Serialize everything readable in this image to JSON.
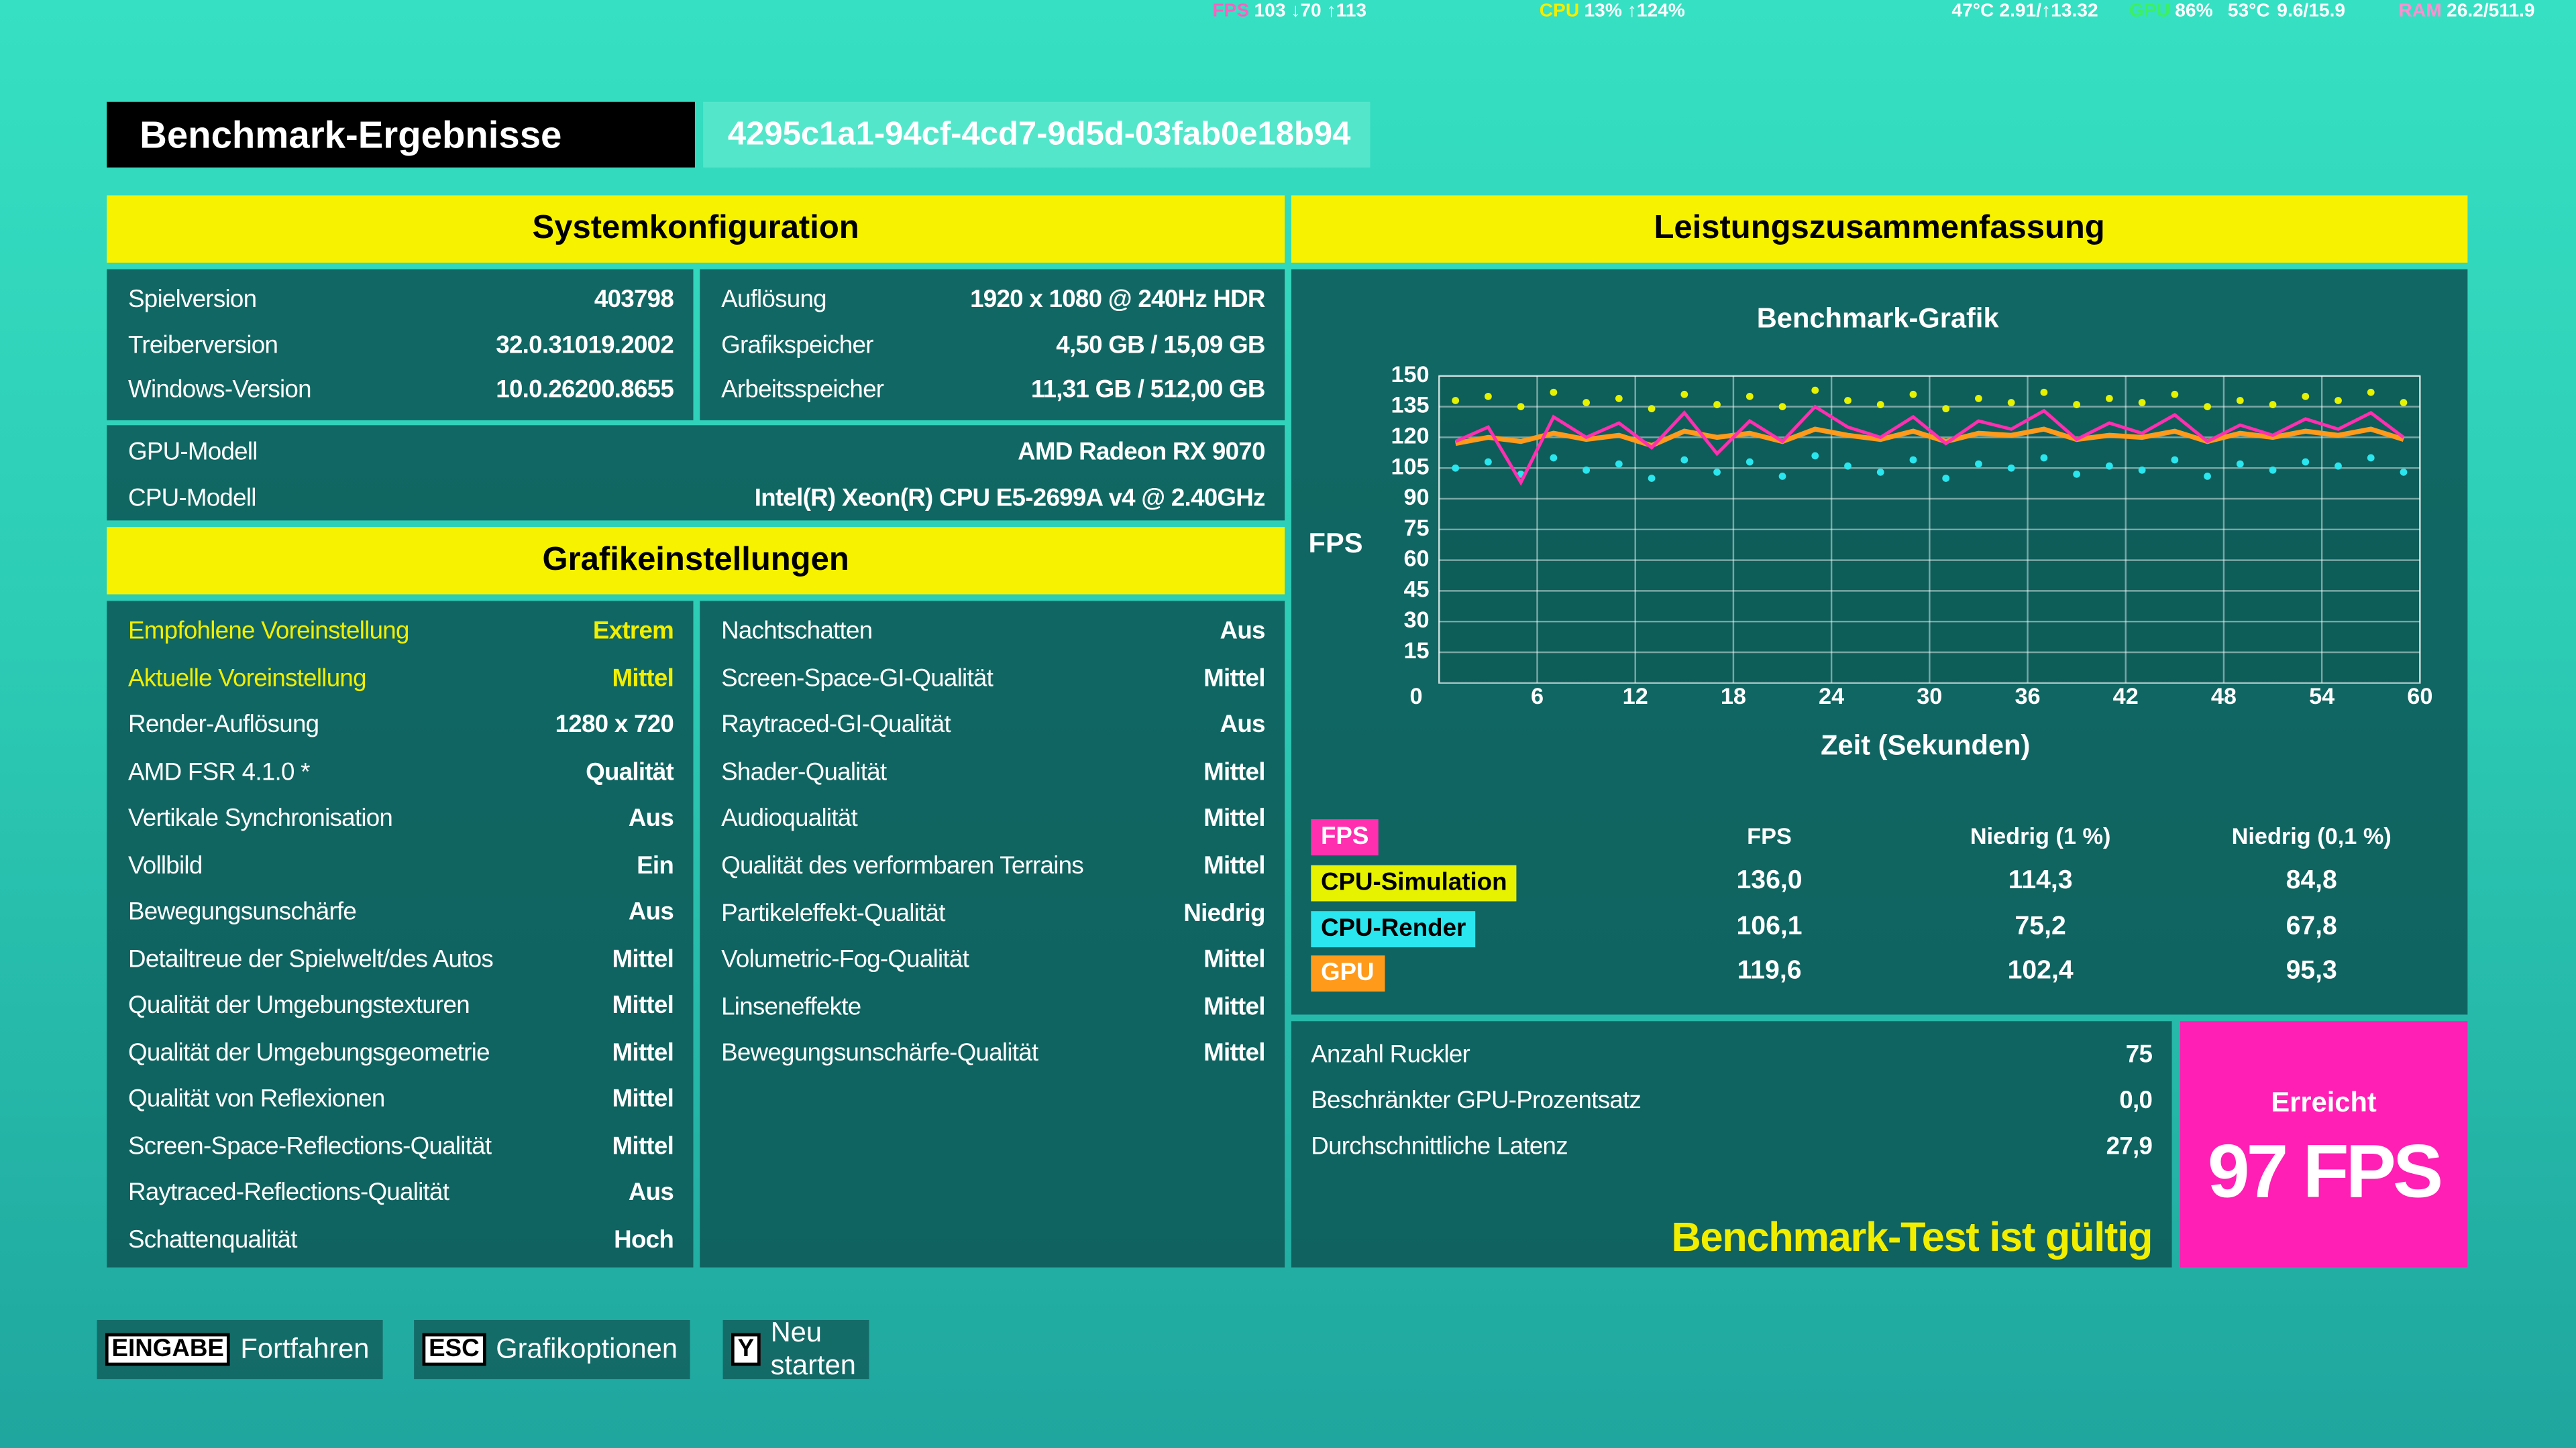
{
  "overlay": [
    {
      "label": "FPS",
      "value": "103 ↓70 ↑113"
    },
    {
      "label": "CPU",
      "value": "13% ↑124%"
    },
    {
      "value": "47°C"
    },
    {
      "value": "2.91/↑13.32"
    },
    {
      "label": "GPU",
      "value": "86%"
    },
    {
      "value": "53°C"
    },
    {
      "value": "9.6/15.9"
    },
    {
      "label": "RAM",
      "value": "26.2/511.9"
    }
  ],
  "header": {
    "title": "Benchmark-Ergebnisse",
    "id": "4295c1a1-94cf-4cd7-9d5d-03fab0e18b94"
  },
  "system": {
    "title": "Systemkonfiguration",
    "left": [
      [
        "Spielversion",
        "403798"
      ],
      [
        "Treiberversion",
        "32.0.31019.2002"
      ],
      [
        "Windows-Version",
        "10.0.26200.8655"
      ]
    ],
    "right": [
      [
        "Auflösung",
        "1920 x 1080 @ 240Hz HDR"
      ],
      [
        "Grafikspeicher",
        "4,50 GB / 15,09 GB"
      ],
      [
        "Arbeitsspeicher",
        "11,31 GB / 512,00 GB"
      ]
    ],
    "wide": [
      [
        "GPU-Modell",
        "AMD Radeon RX 9070"
      ],
      [
        "CPU-Modell",
        "Intel(R) Xeon(R) CPU E5-2699A v4 @ 2.40GHz"
      ]
    ]
  },
  "graphics": {
    "title": "Grafikeinstellungen",
    "left": [
      [
        "Empfohlene Voreinstellung",
        "Extrem"
      ],
      [
        "Aktuelle Voreinstellung",
        "Mittel"
      ],
      [
        "Render-Auflösung",
        "1280 x 720"
      ],
      [
        "AMD FSR 4.1.0 *",
        "Qualität"
      ],
      [
        "Vertikale Synchronisation",
        "Aus"
      ],
      [
        "Vollbild",
        "Ein"
      ],
      [
        "Bewegungsunschärfe",
        "Aus"
      ],
      [
        "Detailtreue der Spielwelt/des Autos",
        "Mittel"
      ],
      [
        "Qualität der Umgebungstexturen",
        "Mittel"
      ],
      [
        "Qualität der Umgebungsgeometrie",
        "Mittel"
      ],
      [
        "Qualität von Reflexionen",
        "Mittel"
      ],
      [
        "Screen-Space-Reflections-Qualität",
        "Mittel"
      ],
      [
        "Raytraced-Reflections-Qualität",
        "Aus"
      ],
      [
        "Schattenqualität",
        "Hoch"
      ]
    ],
    "right": [
      [
        "Nachtschatten",
        "Aus"
      ],
      [
        "Screen-Space-GI-Qualität",
        "Mittel"
      ],
      [
        "Raytraced-GI-Qualität",
        "Aus"
      ],
      [
        "Shader-Qualität",
        "Mittel"
      ],
      [
        "Audioqualität",
        "Mittel"
      ],
      [
        "Qualität des verformbaren Terrains",
        "Mittel"
      ],
      [
        "Partikeleffekt-Qualität",
        "Niedrig"
      ],
      [
        "Volumetric-Fog-Qualität",
        "Mittel"
      ],
      [
        "Linseneffekte",
        "Mittel"
      ],
      [
        "Bewegungsunschärfe-Qualität",
        "Mittel"
      ]
    ]
  },
  "performance": {
    "title": "Leistungszusammenfassung",
    "summary": {
      "headers": [
        "FPS",
        "Niedrig (1 %)",
        "Niedrig (0,1 %)"
      ],
      "rows": [
        [
          "136,0",
          "114,3",
          "84,8"
        ],
        [
          "106,1",
          "75,2",
          "67,8"
        ],
        [
          "119,6",
          "102,4",
          "95,3"
        ]
      ]
    },
    "stats": [
      [
        "Anzahl Ruckler",
        "75"
      ],
      [
        "Beschränkter GPU-Prozentsatz",
        "0,0"
      ],
      [
        "Durchschnittliche Latenz",
        "27,9"
      ]
    ],
    "valid": "Benchmark-Test ist gültig",
    "achieved": {
      "label": "Erreicht",
      "value": "97 FPS"
    }
  },
  "chart_data": {
    "type": "line",
    "title": "Benchmark-Grafik",
    "y_label": "FPS",
    "x_label": "Zeit (Sekunden)",
    "xlim": [
      0,
      60
    ],
    "xticks": [
      0,
      6,
      12,
      18,
      24,
      30,
      36,
      42,
      48,
      54,
      60
    ],
    "ylim": [
      0,
      150
    ],
    "yticks": [
      15,
      30,
      45,
      60,
      75,
      90,
      105,
      120,
      135,
      150
    ],
    "grid": true,
    "x": [
      1,
      3,
      5,
      7,
      9,
      11,
      13,
      15,
      17,
      19,
      21,
      23,
      25,
      27,
      29,
      31,
      33,
      35,
      37,
      39,
      41,
      43,
      45,
      47,
      49,
      51,
      53,
      55,
      57,
      59
    ],
    "series": [
      {
        "name": "FPS",
        "color": "#ff2fb0",
        "mode": "line",
        "values": [
          118,
          125,
          98,
          130,
          120,
          127,
          115,
          132,
          112,
          128,
          118,
          135,
          125,
          120,
          130,
          117,
          128,
          124,
          133,
          119,
          127,
          122,
          131,
          118,
          126,
          121,
          129,
          124,
          132,
          120
        ]
      },
      {
        "name": "CPU-Simulation",
        "color": "#e6f200",
        "mode": "markers",
        "values": [
          138,
          140,
          135,
          142,
          137,
          139,
          134,
          141,
          136,
          140,
          135,
          143,
          138,
          136,
          141,
          134,
          139,
          137,
          142,
          136,
          139,
          137,
          141,
          135,
          138,
          136,
          140,
          138,
          142,
          137
        ]
      },
      {
        "name": "CPU-Render",
        "color": "#2ae6ee",
        "mode": "markers",
        "values": [
          105,
          108,
          102,
          110,
          104,
          107,
          100,
          109,
          103,
          108,
          101,
          111,
          106,
          103,
          109,
          100,
          107,
          105,
          110,
          102,
          106,
          104,
          109,
          101,
          107,
          104,
          108,
          106,
          110,
          103
        ]
      },
      {
        "name": "GPU",
        "color": "#ff9a1a",
        "mode": "line",
        "values": [
          117,
          120,
          118,
          122,
          119,
          121,
          116,
          123,
          120,
          122,
          118,
          124,
          121,
          119,
          123,
          118,
          122,
          121,
          124,
          119,
          121,
          120,
          123,
          118,
          122,
          120,
          123,
          121,
          124,
          119
        ]
      }
    ]
  },
  "footer": [
    {
      "key": "EINGABE",
      "label": "Fortfahren"
    },
    {
      "key": "ESC",
      "label": "Grafikoptionen"
    },
    {
      "key": "Y",
      "label": "Neu starten"
    }
  ]
}
